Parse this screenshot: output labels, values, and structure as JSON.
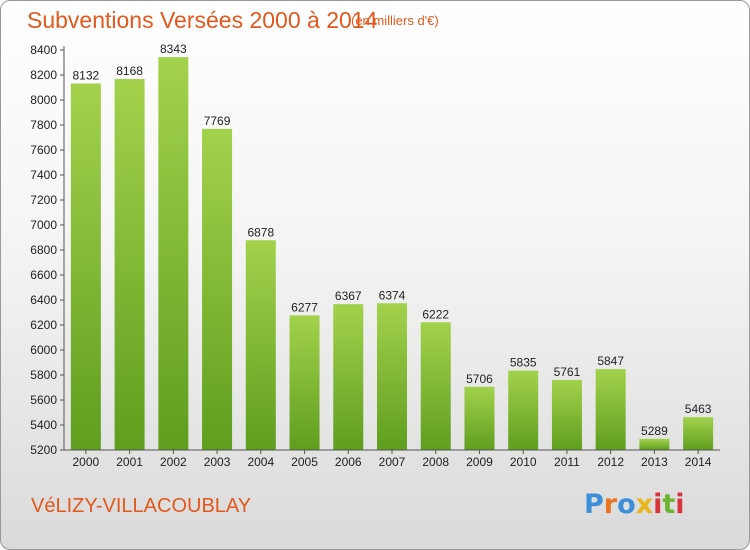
{
  "header": {
    "title": "Subventions Versées 2000 à 2014",
    "subtitle": "(en milliers d'€)"
  },
  "footer": {
    "commune": "VéLIZY-VILLACOUBLAY",
    "logo_text": "Proxiti",
    "logo_colors": [
      "#3b8ed8",
      "#e8741c",
      "#3b8ed8",
      "#e8b51c",
      "#d8343b",
      "#6bb52e",
      "#d8343b"
    ]
  },
  "colors": {
    "bar_top": "#a3d24c",
    "bar_bottom": "#5f9e1e",
    "axis": "#555555",
    "grid": "#dddddd"
  },
  "chart_data": {
    "type": "bar",
    "title": "Subventions Versées 2000 à 2014",
    "subtitle": "(en milliers d'€)",
    "categories": [
      "2000",
      "2001",
      "2002",
      "2003",
      "2004",
      "2005",
      "2006",
      "2007",
      "2008",
      "2009",
      "2010",
      "2011",
      "2012",
      "2013",
      "2014"
    ],
    "values": [
      8132,
      8168,
      8343,
      7769,
      6878,
      6277,
      6367,
      6374,
      6222,
      5706,
      5835,
      5761,
      5847,
      5289,
      5463
    ],
    "ylim": [
      5200,
      8400
    ],
    "yticks": [
      5200,
      5400,
      5600,
      5800,
      6000,
      6200,
      6400,
      6600,
      6800,
      7000,
      7200,
      7400,
      7600,
      7800,
      8000,
      8200,
      8400
    ],
    "grid": false,
    "data_labels": true
  }
}
